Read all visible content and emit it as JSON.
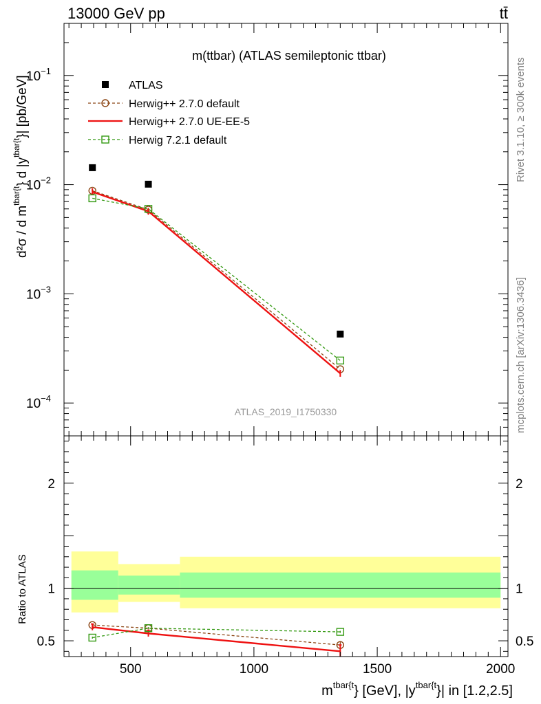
{
  "header": {
    "left": "13000 GeV pp",
    "right": "tt̄"
  },
  "side_labels": {
    "rivet": "Rivet 3.1.10, ≥ 300k events",
    "mcplots": "mcplots.cern.ch [arXiv:1306.3436]"
  },
  "chart_data": [
    {
      "type": "line",
      "panel": "main",
      "title": "m(ttbar) (ATLAS semileptonic ttbar)",
      "watermark": "ATLAS_2019_I1750330",
      "yscale": "log",
      "ylim": [
        5e-05,
        0.3
      ],
      "xlim": [
        230,
        2030
      ],
      "ylabel": {
        "base": "d²σ / d m",
        "sup1": "tbar{t",
        "mid": "} d |y",
        "sup2": "tbar{t",
        "tail": "}| [pb/GeV]"
      },
      "yticks": [
        {
          "value": 0.1,
          "base": "10",
          "exp": "−1"
        },
        {
          "value": 0.01,
          "base": "10",
          "exp": "−2"
        },
        {
          "value": 0.001,
          "base": "10",
          "exp": "−3"
        },
        {
          "value": 0.0001,
          "base": "10",
          "exp": "−4"
        }
      ],
      "legend": {
        "placement": "top-left",
        "entries": [
          {
            "label": "ATLAS",
            "marker": "square-filled",
            "color": "#000000"
          },
          {
            "label": "Herwig++ 2.7.0 default",
            "marker": "circle-open",
            "color": "#8b4513",
            "dash": true
          },
          {
            "label": "Herwig++ 2.7.0 UE-EE-5",
            "marker": "none",
            "color": "#ee1111",
            "dash": false
          },
          {
            "label": "Herwig 7.2.1 default",
            "marker": "square-open",
            "color": "#339911",
            "dash": true
          }
        ]
      },
      "data": {
        "name": "ATLAS",
        "x": [
          345,
          572,
          1350
        ],
        "y": [
          0.0143,
          0.0101,
          0.000428
        ]
      },
      "series": [
        {
          "name": "Herwig++ 2.7.0 default",
          "x": [
            345,
            572,
            1350
          ],
          "y": [
            0.0088,
            0.0059,
            0.000204
          ]
        },
        {
          "name": "Herwig++ 2.7.0 UE-EE-5",
          "x": [
            345,
            572,
            1350
          ],
          "y": [
            0.0086,
            0.0057,
            0.000187
          ]
        },
        {
          "name": "Herwig 7.2.1 default",
          "x": [
            345,
            572,
            1350
          ],
          "y": [
            0.0075,
            0.006,
            0.000245
          ]
        }
      ]
    },
    {
      "type": "line",
      "panel": "ratio",
      "ylabel": "Ratio to ATLAS",
      "xlabel": {
        "pre": "m",
        "sup1": "tbar{t",
        "mid": "} [GeV], |y",
        "sup2": "tbar{t",
        "tail": "}| in [1.2,2.5]"
      },
      "ylim": [
        0.35,
        2.45
      ],
      "yticks": [
        {
          "value": 0.5,
          "label": "0.5"
        },
        {
          "value": 1,
          "label": "1"
        },
        {
          "value": 2,
          "label": "2"
        }
      ],
      "xticks": [
        {
          "value": 500,
          "label": "500"
        },
        {
          "value": 1000,
          "label": "1000"
        },
        {
          "value": 1500,
          "label": "1500"
        },
        {
          "value": 2000,
          "label": "2000"
        }
      ],
      "uncertainty_bands": [
        {
          "x0": 260,
          "x1": 450,
          "inner": [
            0.89,
            1.17
          ],
          "outer": [
            0.77,
            1.35
          ]
        },
        {
          "x0": 450,
          "x1": 700,
          "inner": [
            0.94,
            1.12
          ],
          "outer": [
            0.87,
            1.23
          ]
        },
        {
          "x0": 700,
          "x1": 2000,
          "inner": [
            0.91,
            1.15
          ],
          "outer": [
            0.81,
            1.3
          ]
        }
      ],
      "series": [
        {
          "name": "Herwig++ 2.7.0 default",
          "x": [
            345,
            572,
            1350
          ],
          "y": [
            0.65,
            0.62,
            0.46
          ],
          "err": [
            0.01,
            0.01,
            0.035
          ]
        },
        {
          "name": "Herwig++ 2.7.0 UE-EE-5",
          "x": [
            345,
            572,
            1350
          ],
          "y": [
            0.63,
            0.57,
            0.4
          ],
          "err": [
            0.03,
            0.03,
            0.06
          ]
        },
        {
          "name": "Herwig 7.2.1 default",
          "x": [
            345,
            572,
            1350
          ],
          "y": [
            0.53,
            0.62,
            0.585
          ],
          "err": [
            0.01,
            0.01,
            0.01
          ]
        }
      ]
    }
  ],
  "colors": {
    "inner_band": "#99ff99",
    "outer_band": "#ffff99",
    "herwig_default": "#8b4513",
    "ue_ee5": "#ee1111",
    "herwig7": "#339911",
    "watermark": "#999999"
  }
}
